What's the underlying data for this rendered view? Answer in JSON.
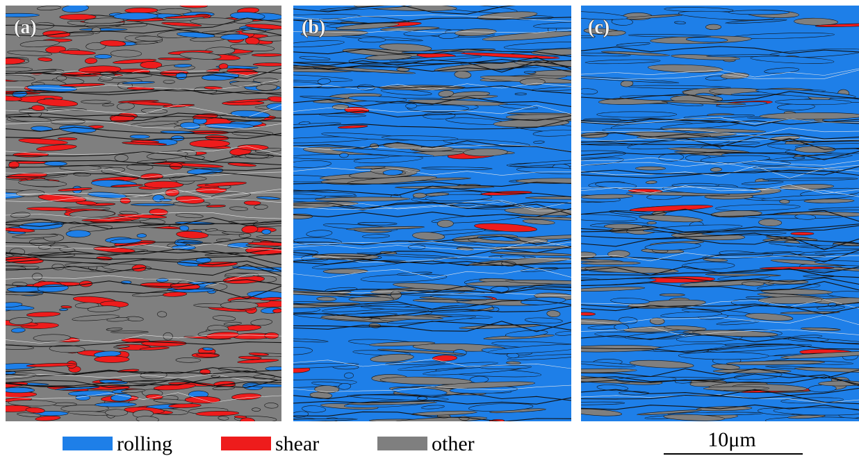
{
  "panels": [
    {
      "label": "(a)"
    },
    {
      "label": "(b)"
    },
    {
      "label": "(c)"
    }
  ],
  "legend": [
    {
      "label": "rolling",
      "color": "#1e7fe8"
    },
    {
      "label": "shear",
      "color": "#ee1c1c"
    },
    {
      "label": "other",
      "color": "#7f7f7f"
    }
  ],
  "scale_bar": {
    "label": "10μm"
  }
}
